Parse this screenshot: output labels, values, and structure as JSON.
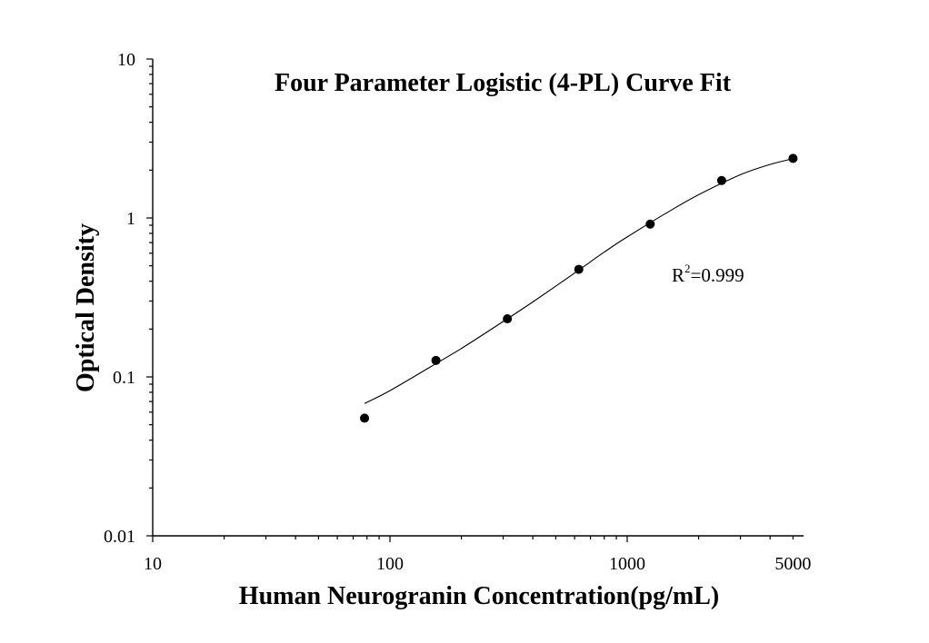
{
  "chart_data": {
    "type": "scatter",
    "title": "Four Parameter Logistic (4-PL) Curve Fit",
    "xlabel": "Human Neurogranin Concentration(pg/mL)",
    "ylabel": "Optical Density",
    "x_scale": "log",
    "y_scale": "log",
    "xlim": [
      10,
      5000
    ],
    "ylim": [
      0.01,
      10
    ],
    "x_tick_labels": [
      "10",
      "100",
      "1000",
      "5000"
    ],
    "y_tick_labels": [
      "0.01",
      "0.1",
      "1",
      "10"
    ],
    "grid": false,
    "series": [
      {
        "x": [
          78.125,
          156.25,
          312.5,
          625,
          1250,
          2500,
          5000
        ],
        "y": [
          0.055,
          0.127,
          0.232,
          0.475,
          0.915,
          1.72,
          2.37
        ]
      }
    ],
    "fit_curve": {
      "x": [
        78.125,
        100,
        150,
        200,
        300,
        400,
        600,
        800,
        1000,
        1500,
        2000,
        3000,
        4000,
        5000
      ],
      "y": [
        0.068,
        0.082,
        0.117,
        0.151,
        0.223,
        0.296,
        0.45,
        0.61,
        0.76,
        1.1,
        1.4,
        1.87,
        2.17,
        2.36
      ]
    },
    "annotation": {
      "text": "R",
      "superscript": "2",
      "suffix": "=0.999"
    },
    "colors": {
      "axis": "#000000",
      "marker": "#000000",
      "curve": "#000000"
    }
  }
}
